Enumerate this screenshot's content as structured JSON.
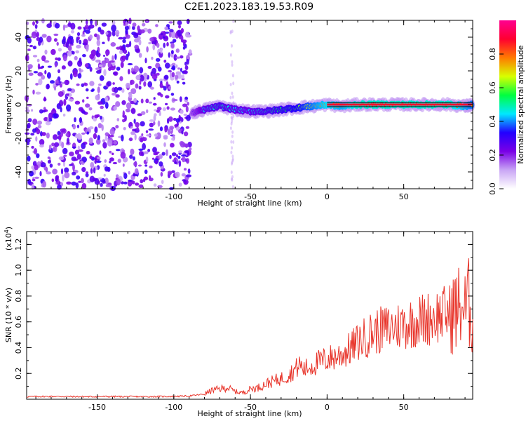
{
  "chart_data": [
    {
      "type": "heatmap",
      "title": "C2E1.2023.183.19.53.R09",
      "xlabel": "Height of straight line (km)",
      "ylabel": "Frequency (Hz)",
      "xlim": [
        -196,
        95
      ],
      "ylim": [
        -50,
        50
      ],
      "xticks": [
        -150,
        -100,
        -50,
        0,
        50
      ],
      "yticks": [
        -40,
        -20,
        0,
        20,
        40
      ],
      "noise_region_x": [
        -196,
        -89
      ],
      "signal_trace": {
        "x": [
          -88,
          -80,
          -70,
          -60,
          -50,
          -40,
          -30,
          -20,
          -10,
          0,
          10,
          20,
          30,
          40,
          50,
          60,
          70,
          80,
          90,
          95
        ],
        "y": [
          -5,
          -3,
          -1,
          -3,
          -4,
          -4,
          -3,
          -2,
          -1,
          0,
          -1,
          0,
          0,
          0,
          0,
          0,
          0,
          0,
          -1,
          0
        ],
        "amplitude": [
          0.3,
          0.45,
          0.5,
          0.45,
          0.45,
          0.5,
          0.55,
          0.6,
          0.7,
          0.8,
          0.75,
          0.85,
          0.85,
          0.85,
          0.85,
          0.85,
          0.85,
          0.85,
          0.75,
          0.7
        ]
      },
      "colorbar": {
        "label": "Normalized spectral amplitude",
        "range": [
          0,
          1
        ],
        "ticks": [
          "0.0",
          "0.2",
          "0.4",
          "0.6",
          "0.8"
        ],
        "colors": [
          "#ffffff",
          "#c9a6f5",
          "#7a00e6",
          "#2200ff",
          "#00e8ff",
          "#00ff40",
          "#d8ff00",
          "#ff7a00",
          "#ff0030",
          "#ff0090"
        ]
      }
    },
    {
      "type": "line",
      "xlabel": "Height of straight line (km)",
      "ylabel": "SNR (10 * v/v)",
      "multiplier_label": "(x10",
      "multiplier_exp": "4",
      "multiplier_close": ")",
      "xlim": [
        -196,
        95
      ],
      "ylim": [
        0,
        13000
      ],
      "xticks": [
        -150,
        -100,
        -50,
        0,
        50
      ],
      "yticks": [
        2000,
        4000,
        6000,
        8000,
        10000,
        12000
      ],
      "ytick_labels": [
        "0.2",
        "0.4",
        "0.6",
        "0.8",
        "1.0",
        "1.2"
      ],
      "color": "#e8342a",
      "series": [
        {
          "x": [
            -196,
            -180,
            -160,
            -140,
            -120,
            -100,
            -90,
            -80,
            -75,
            -70,
            -65,
            -60,
            -55,
            -50,
            -45,
            -40,
            -35,
            -30,
            -25,
            -20,
            -18,
            -15,
            -10,
            -5,
            0,
            5,
            10,
            15,
            20,
            25,
            30,
            40,
            50,
            60,
            70,
            80,
            85,
            88,
            90,
            92,
            95
          ],
          "y": [
            200,
            220,
            200,
            210,
            200,
            220,
            250,
            400,
            700,
            800,
            900,
            600,
            500,
            800,
            900,
            1200,
            1400,
            1600,
            1900,
            2400,
            2700,
            2300,
            2600,
            2900,
            3100,
            3300,
            3500,
            3900,
            4400,
            4800,
            5200,
            5500,
            5800,
            6100,
            6400,
            6700,
            7000,
            7400,
            6800,
            7600,
            6200
          ]
        }
      ]
    }
  ]
}
